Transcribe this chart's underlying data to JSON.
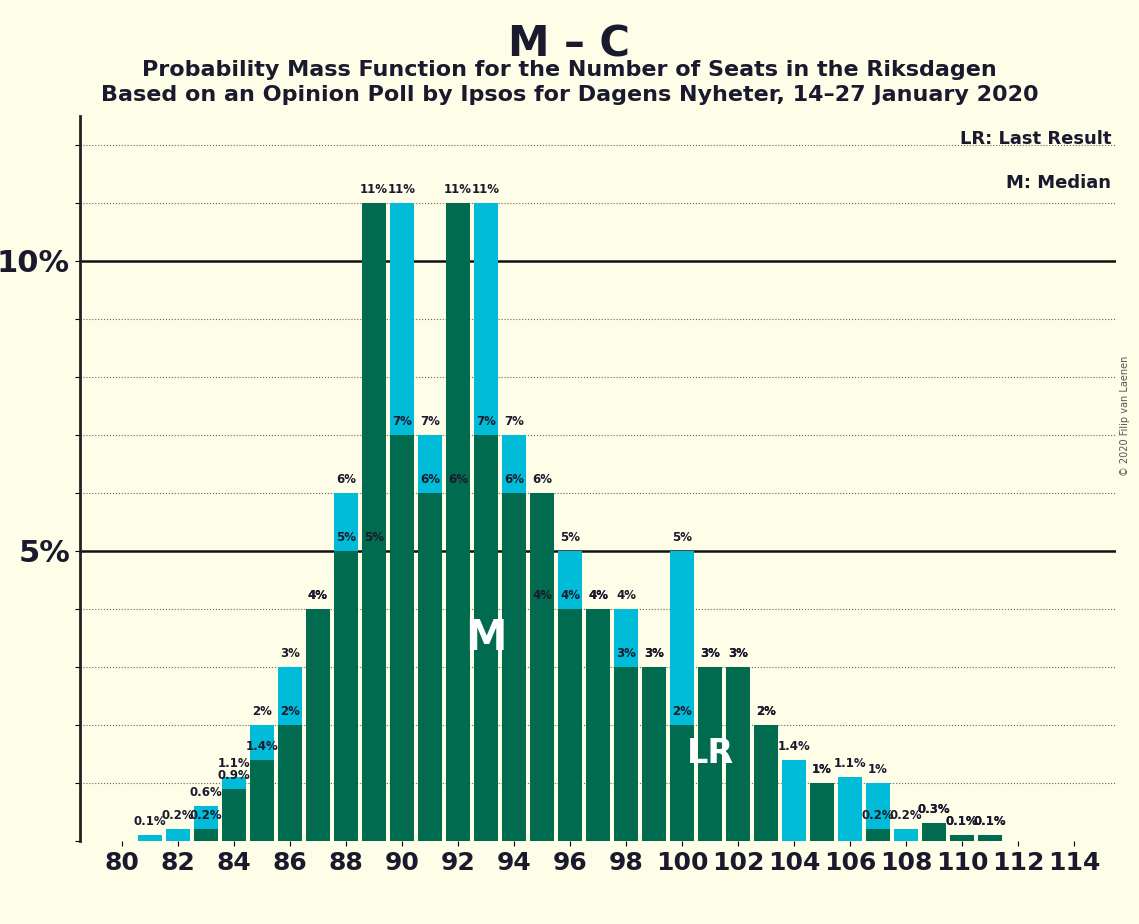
{
  "title": "M – C",
  "subtitle1": "Probability Mass Function for the Number of Seats in the Riksdagen",
  "subtitle2": "Based on an Opinion Poll by Ipsos for Dagens Nyheter, 14–27 January 2020",
  "copyright": "© 2020 Filip van Laenen",
  "legend_lr": "LR: Last Result",
  "legend_m": "M: Median",
  "background_color": "#FEFDE7",
  "bar_color_cyan": "#00BCD8",
  "bar_color_green": "#006B4F",
  "seats": [
    80,
    81,
    82,
    83,
    84,
    85,
    86,
    87,
    88,
    89,
    90,
    91,
    92,
    93,
    94,
    95,
    96,
    97,
    98,
    99,
    100,
    101,
    102,
    103,
    104,
    105,
    106,
    107,
    108,
    109,
    110,
    111,
    112,
    113,
    114
  ],
  "cyan_values": [
    0.0,
    0.1,
    0.2,
    0.6,
    1.1,
    2.0,
    3.0,
    4.0,
    6.0,
    5.0,
    11.0,
    7.0,
    6.0,
    11.0,
    7.0,
    4.0,
    5.0,
    4.0,
    4.0,
    3.0,
    5.0,
    3.0,
    3.0,
    2.0,
    1.4,
    1.0,
    1.1,
    1.0,
    0.2,
    0.3,
    0.1,
    0.1,
    0.0,
    0.0,
    0.0
  ],
  "green_values": [
    0.0,
    0.0,
    0.0,
    0.2,
    0.9,
    1.4,
    2.0,
    4.0,
    5.0,
    11.0,
    7.0,
    6.0,
    11.0,
    7.0,
    6.0,
    6.0,
    4.0,
    4.0,
    3.0,
    3.0,
    2.0,
    3.0,
    3.0,
    2.0,
    0.0,
    1.0,
    0.0,
    0.2,
    0.0,
    0.3,
    0.1,
    0.1,
    0.0,
    0.0,
    0.0
  ],
  "median_seat": 93,
  "lr_seat": 101,
  "ylim_max": 12.5,
  "title_fontsize": 30,
  "subtitle_fontsize": 16,
  "label_fontsize": 8.5,
  "ytick_fontsize": 22,
  "xtick_fontsize": 18
}
